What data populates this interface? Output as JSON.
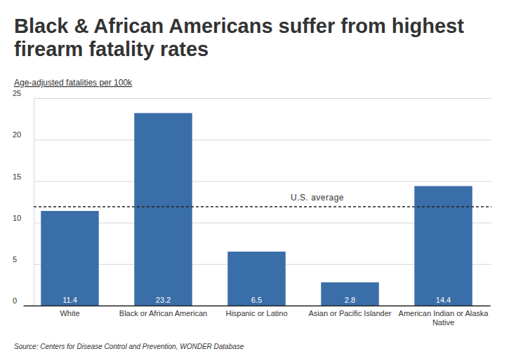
{
  "chart_data": {
    "type": "bar",
    "title": "Black & African Americans suffer from highest firearm fatality rates",
    "y_label": "Age-adjusted fatalities per 100k",
    "categories": [
      "White",
      "Black or African American",
      "Hispanic or Latino",
      "Asian or Pacific Islander",
      "American Indian or Alaska Native"
    ],
    "values": [
      11.4,
      23.2,
      6.5,
      2.8,
      14.4
    ],
    "color": "#3a6ea8",
    "ylim": [
      0,
      25
    ],
    "yticks": [
      0,
      5,
      10,
      15,
      20,
      25
    ],
    "grid": true,
    "data_labels": true,
    "annotations": [
      {
        "text": "U.S. average",
        "value": 11.9
      }
    ],
    "source": "Source: Centers for Disease Control and Prevention, WONDER Database"
  }
}
